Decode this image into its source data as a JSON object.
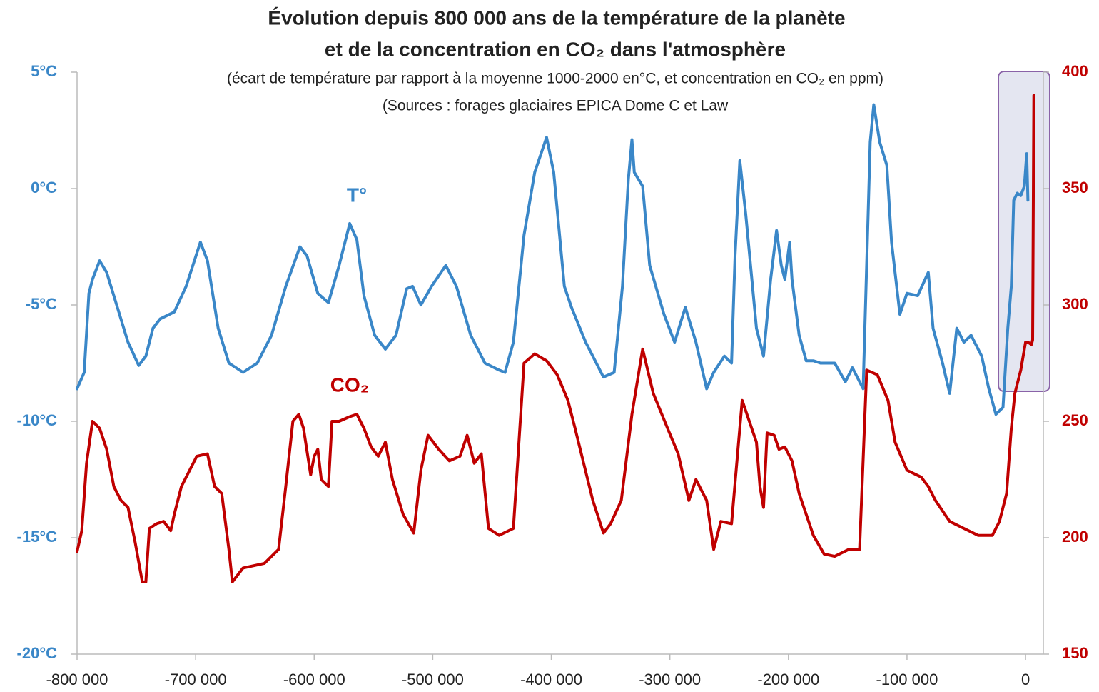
{
  "chart_data": {
    "type": "line",
    "title": [
      "Évolution depuis 800 000 ans de la température de la planète",
      "et de la concentration en CO₂ dans l'atmosphère"
    ],
    "subtitle": "(écart de température par rapport à la moyenne 1000-2000 en°C, et concentration en CO₂ en ppm)",
    "source": "(Sources : forages glaciaires EPICA Dome C et Law",
    "xlim": [
      -800000,
      15000
    ],
    "xticks": [
      {
        "value": -800000,
        "label": "-800 000"
      },
      {
        "value": -700000,
        "label": "-700 000"
      },
      {
        "value": -600000,
        "label": "-600 000"
      },
      {
        "value": -500000,
        "label": "-500 000"
      },
      {
        "value": -400000,
        "label": "-400 000"
      },
      {
        "value": -300000,
        "label": "-300 000"
      },
      {
        "value": -200000,
        "label": "-200 000"
      },
      {
        "value": -100000,
        "label": "-100 000"
      },
      0
    ],
    "ylim": [
      -20,
      5
    ],
    "yticks": [
      {
        "value": 5,
        "label": "5°C"
      },
      {
        "value": 0,
        "label": "0°C"
      },
      {
        "value": -5,
        "label": "-5°C"
      },
      {
        "value": -10,
        "label": "-10°C"
      },
      {
        "value": -15,
        "label": "-15°C"
      },
      {
        "value": -20,
        "label": "-20°C"
      }
    ],
    "y2lim": [
      150,
      400
    ],
    "y2ticks": [
      400,
      350,
      300,
      250,
      200,
      150
    ],
    "grid": false,
    "series": [
      {
        "name": "T°",
        "color": "#3a87c8",
        "x": [
          -800000,
          -794000,
          -790000,
          -787000,
          -781000,
          -775000,
          -766000,
          -757000,
          -748000,
          -742000,
          -736000,
          -730000,
          -718000,
          -708000,
          -696000,
          -690000,
          -681000,
          -672000,
          -660000,
          -648000,
          -636000,
          -624000,
          -612000,
          -606000,
          -597000,
          -588000,
          -579000,
          -570000,
          -564000,
          -558000,
          -549000,
          -540000,
          -531000,
          -522000,
          -517000,
          -510000,
          -501000,
          -489000,
          -480000,
          -468000,
          -456000,
          -444000,
          -439000,
          -432000,
          -423000,
          -414000,
          -404000,
          -398000,
          -389000,
          -383000,
          -371000,
          -356000,
          -347000,
          -340000,
          -335000,
          -332000,
          -330000,
          -323000,
          -317000,
          -305000,
          -296000,
          -287000,
          -278000,
          -269000,
          -263000,
          -254000,
          -248000,
          -245000,
          -241000,
          -236000,
          -227000,
          -221000,
          -215000,
          -210000,
          -206000,
          -203000,
          -199000,
          -197000,
          -191000,
          -185000,
          -179000,
          -173000,
          -161000,
          -152000,
          -146000,
          -137000,
          -131000,
          -128000,
          -123000,
          -117000,
          -113000,
          -106000,
          -100000,
          -91000,
          -82000,
          -78000,
          -70000,
          -64000,
          -58000,
          -52000,
          -46000,
          -37000,
          -31000,
          -25000,
          -19000,
          -15000,
          -12000,
          -10000,
          -7000,
          -4000,
          -1000,
          1000,
          2000
        ],
        "values": [
          -8.6,
          -7.9,
          -4.5,
          -3.9,
          -3.1,
          -3.6,
          -5.1,
          -6.6,
          -7.6,
          -7.2,
          -6.0,
          -5.6,
          -5.3,
          -4.2,
          -2.3,
          -3.1,
          -6.0,
          -7.5,
          -7.9,
          -7.5,
          -6.3,
          -4.2,
          -2.5,
          -2.9,
          -4.5,
          -4.9,
          -3.3,
          -1.5,
          -2.2,
          -4.6,
          -6.3,
          -6.9,
          -6.3,
          -4.3,
          -4.2,
          -5.0,
          -4.2,
          -3.3,
          -4.2,
          -6.3,
          -7.5,
          -7.8,
          -7.9,
          -6.6,
          -2.0,
          0.7,
          2.2,
          0.7,
          -4.2,
          -5.1,
          -6.6,
          -8.1,
          -7.9,
          -4.2,
          0.4,
          2.1,
          0.7,
          0.1,
          -3.3,
          -5.4,
          -6.6,
          -5.1,
          -6.6,
          -8.6,
          -7.9,
          -7.2,
          -7.5,
          -2.9,
          1.2,
          -1.1,
          -6.0,
          -7.2,
          -3.9,
          -1.8,
          -3.3,
          -3.9,
          -2.3,
          -3.9,
          -6.3,
          -7.4,
          -7.4,
          -7.5,
          -7.5,
          -8.3,
          -7.7,
          -8.6,
          2.0,
          3.6,
          2.0,
          1.0,
          -2.3,
          -5.4,
          -4.5,
          -4.6,
          -3.6,
          -6.0,
          -7.5,
          -8.8,
          -6.0,
          -6.6,
          -6.3,
          -7.2,
          -8.6,
          -9.7,
          -9.4,
          -6.0,
          -4.2,
          -0.5,
          -0.2,
          -0.3,
          0.1,
          1.5,
          -0.5
        ]
      },
      {
        "name": "CO₂",
        "color": "#c00000",
        "axis": "y2",
        "x": [
          -800000,
          -796000,
          -792000,
          -787000,
          -781000,
          -775000,
          -769000,
          -763000,
          -757000,
          -751000,
          -745000,
          -742000,
          -739000,
          -733000,
          -727000,
          -721000,
          -718000,
          -712000,
          -705000,
          -699000,
          -690000,
          -684000,
          -678000,
          -672000,
          -669000,
          -660000,
          -642000,
          -636000,
          -630000,
          -624000,
          -618000,
          -613000,
          -609000,
          -603000,
          -600000,
          -597000,
          -594000,
          -588000,
          -585000,
          -579000,
          -570000,
          -564000,
          -558000,
          -552000,
          -546000,
          -540000,
          -534000,
          -525000,
          -516000,
          -510000,
          -504000,
          -495000,
          -486000,
          -477000,
          -471000,
          -465000,
          -459000,
          -453000,
          -444000,
          -432000,
          -423000,
          -414000,
          -404000,
          -395000,
          -386000,
          -380000,
          -365000,
          -356000,
          -350000,
          -341000,
          -332000,
          -323000,
          -314000,
          -302000,
          -293000,
          -284000,
          -278000,
          -269000,
          -263000,
          -257000,
          -248000,
          -239000,
          -233000,
          -227000,
          -224000,
          -221000,
          -218000,
          -212000,
          -208000,
          -203000,
          -197000,
          -191000,
          -179000,
          -170000,
          -161000,
          -149000,
          -140000,
          -134000,
          -125000,
          -116000,
          -110000,
          -100000,
          -88000,
          -82000,
          -76000,
          -64000,
          -52000,
          -40000,
          -28000,
          -22000,
          -16000,
          -12000,
          -9000,
          -4000,
          0,
          2000,
          5000,
          6000,
          7000
        ],
        "values": [
          194,
          203,
          232,
          250,
          247,
          238,
          222,
          216,
          213,
          198,
          181,
          181,
          204,
          206,
          207,
          203,
          210,
          222,
          229,
          235,
          236,
          222,
          219,
          195,
          181,
          187,
          189,
          192,
          195,
          222,
          250,
          253,
          247,
          227,
          235,
          238,
          225,
          222,
          250,
          250,
          252,
          253,
          247,
          239,
          235,
          241,
          225,
          210,
          202,
          229,
          244,
          238,
          233,
          235,
          244,
          232,
          236,
          204,
          201,
          204,
          275,
          279,
          276,
          270,
          259,
          247,
          216,
          202,
          206,
          216,
          253,
          281,
          262,
          247,
          236,
          216,
          225,
          216,
          195,
          207,
          206,
          259,
          250,
          241,
          222,
          213,
          245,
          244,
          238,
          239,
          233,
          219,
          201,
          193,
          192,
          195,
          195,
          272,
          270,
          259,
          241,
          229,
          226,
          222,
          216,
          207,
          204,
          201,
          201,
          207,
          219,
          247,
          262,
          272,
          284,
          284,
          283,
          285,
          390
        ]
      }
    ]
  }
}
